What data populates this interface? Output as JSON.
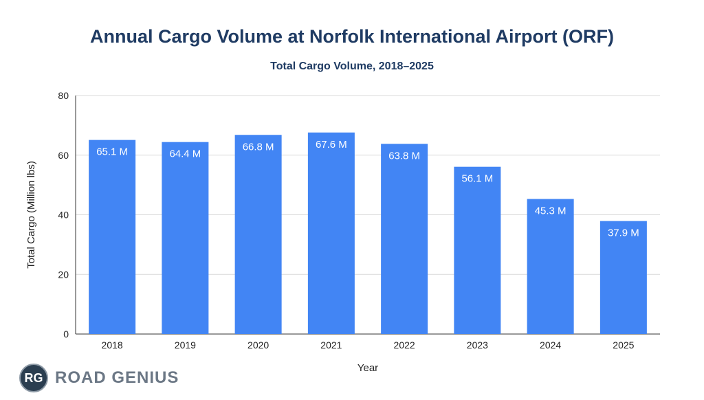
{
  "chart_data": {
    "type": "bar",
    "title": "Annual Cargo Volume at Norfolk International Airport (ORF)",
    "subtitle": "Total Cargo Volume, 2018–2025",
    "xlabel": "Year",
    "ylabel": "Total Cargo (Million lbs)",
    "ylim": [
      0,
      80
    ],
    "yticks": [
      0,
      20,
      40,
      60,
      80
    ],
    "grid": true,
    "categories": [
      "2018",
      "2019",
      "2020",
      "2021",
      "2022",
      "2023",
      "2024",
      "2025"
    ],
    "values": [
      65.1,
      64.4,
      66.8,
      67.6,
      63.8,
      56.1,
      45.3,
      37.9
    ],
    "data_labels": [
      "65.1 M",
      "64.4 M",
      "66.8 M",
      "67.6 M",
      "63.8 M",
      "56.1 M",
      "45.3 M",
      "37.9 M"
    ],
    "bar_color": "#4285f4",
    "label_color": "#ffffff"
  },
  "brand": {
    "badge": "RG",
    "name": "ROAD GENIUS"
  }
}
